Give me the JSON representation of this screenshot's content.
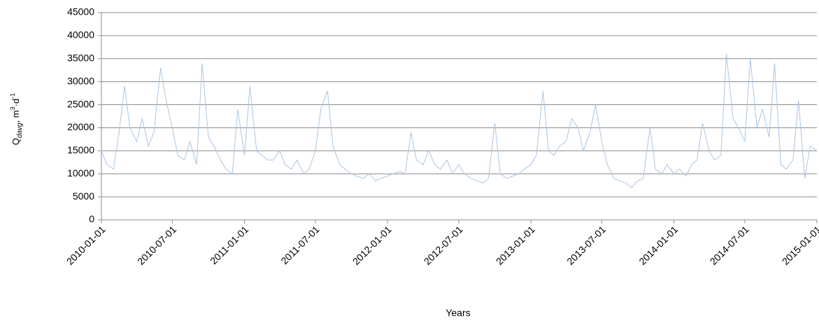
{
  "chart_data": {
    "type": "line",
    "x_label": "Years",
    "y_label": {
      "symbol": "Q",
      "subscript": "davg",
      "unit": ", m",
      "unit_sup": "3",
      "unit2": "·d",
      "unit2_sup": "-1"
    },
    "x": [
      "2010-01-01",
      "2010-01-15",
      "2010-02-01",
      "2010-02-15",
      "2010-03-01",
      "2010-03-15",
      "2010-04-01",
      "2010-04-15",
      "2010-05-01",
      "2010-05-15",
      "2010-06-01",
      "2010-06-15",
      "2010-07-01",
      "2010-07-15",
      "2010-08-01",
      "2010-08-15",
      "2010-09-01",
      "2010-09-15",
      "2010-10-01",
      "2010-10-15",
      "2010-11-01",
      "2010-11-15",
      "2010-12-01",
      "2010-12-15",
      "2011-01-01",
      "2011-01-15",
      "2011-02-01",
      "2011-02-15",
      "2011-03-01",
      "2011-03-15",
      "2011-04-01",
      "2011-04-15",
      "2011-05-01",
      "2011-05-15",
      "2011-06-01",
      "2011-06-15",
      "2011-07-01",
      "2011-07-15",
      "2011-08-01",
      "2011-08-15",
      "2011-09-01",
      "2011-09-15",
      "2011-10-01",
      "2011-10-15",
      "2011-11-01",
      "2011-11-15",
      "2011-12-01",
      "2011-12-15",
      "2012-01-01",
      "2012-01-15",
      "2012-02-01",
      "2012-02-15",
      "2012-03-01",
      "2012-03-15",
      "2012-04-01",
      "2012-04-15",
      "2012-05-01",
      "2012-05-15",
      "2012-06-01",
      "2012-06-15",
      "2012-07-01",
      "2012-07-15",
      "2012-08-01",
      "2012-08-15",
      "2012-09-01",
      "2012-09-15",
      "2012-10-01",
      "2012-10-15",
      "2012-11-01",
      "2012-11-15",
      "2012-12-01",
      "2012-12-15",
      "2013-01-01",
      "2013-01-15",
      "2013-02-01",
      "2013-02-15",
      "2013-03-01",
      "2013-03-15",
      "2013-04-01",
      "2013-04-15",
      "2013-05-01",
      "2013-05-15",
      "2013-06-01",
      "2013-06-15",
      "2013-07-01",
      "2013-07-15",
      "2013-08-01",
      "2013-08-15",
      "2013-09-01",
      "2013-09-15",
      "2013-10-01",
      "2013-10-15",
      "2013-11-01",
      "2013-11-15",
      "2013-12-01",
      "2013-12-15",
      "2014-01-01",
      "2014-01-15",
      "2014-02-01",
      "2014-02-15",
      "2014-03-01",
      "2014-03-15",
      "2014-04-01",
      "2014-04-15",
      "2014-05-01",
      "2014-05-15",
      "2014-06-01",
      "2014-06-15",
      "2014-07-01",
      "2014-07-15",
      "2014-08-01",
      "2014-08-15",
      "2014-09-01",
      "2014-09-15",
      "2014-10-01",
      "2014-10-15",
      "2014-11-01",
      "2014-11-15",
      "2014-12-01",
      "2014-12-15",
      "2015-01-01"
    ],
    "series": [
      {
        "name": "Qdavg",
        "color": "#a9c5e3",
        "values": [
          15000,
          12000,
          11000,
          19000,
          29000,
          20000,
          17000,
          22000,
          16000,
          19000,
          33000,
          26000,
          20000,
          14000,
          13000,
          17000,
          12000,
          34000,
          18000,
          16000,
          13000,
          11000,
          10000,
          24000,
          14000,
          29000,
          15000,
          14000,
          13000,
          13000,
          15000,
          12000,
          11000,
          13000,
          10000,
          11000,
          15000,
          24000,
          28000,
          16000,
          12000,
          11000,
          10000,
          9500,
          9000,
          10000,
          8500,
          9000,
          9500,
          10000,
          10500,
          10000,
          19000,
          13000,
          12000,
          15000,
          12000,
          11000,
          13000,
          10000,
          12000,
          10000,
          9000,
          8500,
          8000,
          9000,
          21000,
          10000,
          9000,
          9500,
          10000,
          11000,
          12000,
          14000,
          28000,
          15000,
          14000,
          16000,
          17000,
          22000,
          20000,
          15000,
          19000,
          25000,
          17000,
          12000,
          9000,
          8500,
          8000,
          7000,
          8500,
          9000,
          20000,
          11000,
          10000,
          12000,
          10000,
          11000,
          9500,
          12000,
          13000,
          21000,
          15000,
          13000,
          14000,
          36000,
          22000,
          20000,
          17000,
          35000,
          20000,
          24000,
          18000,
          34000,
          12000,
          11000,
          13000,
          26000,
          9000,
          16000,
          15000
        ]
      }
    ],
    "xlim": [
      "2010-01-01",
      "2015-01-01"
    ],
    "xticks": [
      "2010-01-01",
      "2010-07-01",
      "2011-01-01",
      "2011-07-01",
      "2012-01-01",
      "2012-07-01",
      "2013-01-01",
      "2013-07-01",
      "2014-01-01",
      "2014-07-01",
      "2015-01-01"
    ],
    "ylim": [
      0,
      45000
    ],
    "yticks": [
      0,
      5000,
      10000,
      15000,
      20000,
      25000,
      30000,
      35000,
      40000,
      45000
    ],
    "grid": true
  }
}
